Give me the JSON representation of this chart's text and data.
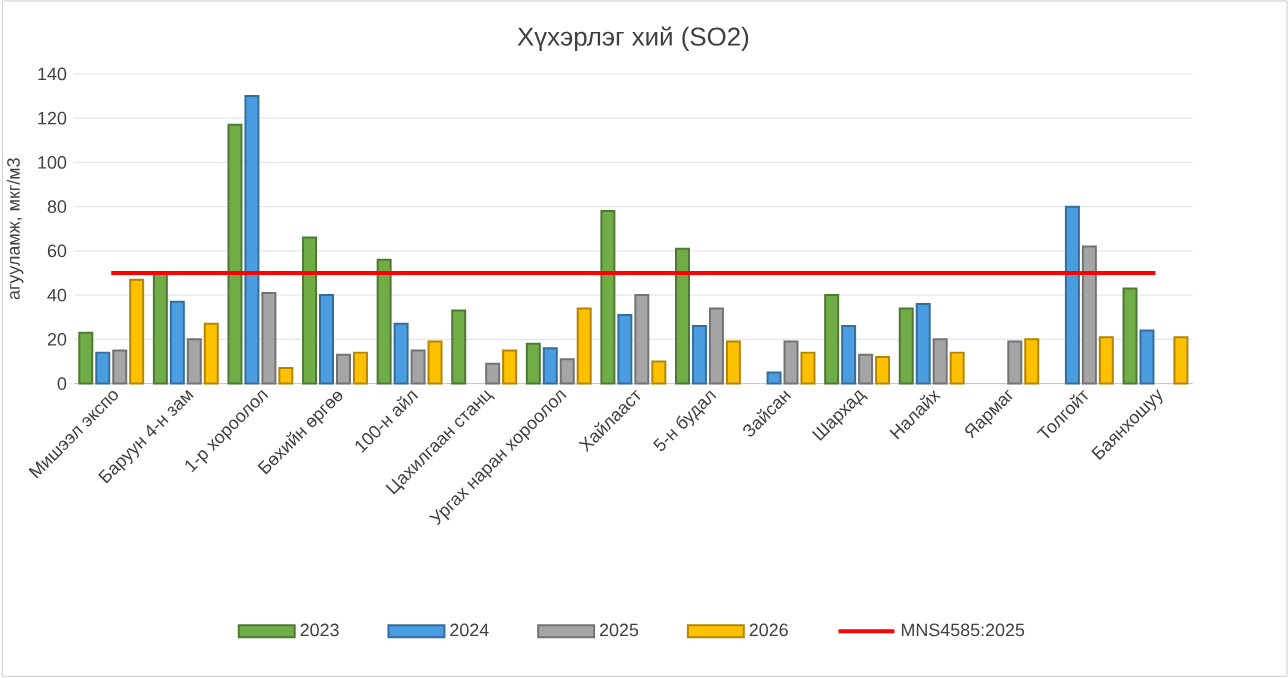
{
  "chart_data": {
    "type": "bar",
    "title": "Хүхэрлэг хий (SO2)",
    "ylabel": "агууламж, мкг/м3",
    "categories": [
      "Мишээл экспо",
      "Баруун 4-н зам",
      "1-р хороолол",
      "Бөхийн өргөө",
      "100-н айл",
      "Цахилгаан станц",
      "Ургах наран хороолол",
      "Хайлааст",
      "5-н будал",
      "Зайсан",
      "Шархад",
      "Налайх",
      "Яармаг",
      "Толгойт",
      "Баянхошуу"
    ],
    "series": [
      {
        "name": "2023",
        "color": "#70ad47",
        "values": [
          23,
          50,
          117,
          66,
          56,
          33,
          18,
          78,
          61,
          null,
          40,
          34,
          null,
          null,
          43
        ]
      },
      {
        "name": "2024",
        "color": "#4a9de0",
        "values": [
          14,
          37,
          130,
          40,
          27,
          null,
          16,
          31,
          26,
          5,
          26,
          36,
          null,
          80,
          24
        ]
      },
      {
        "name": "2025",
        "color": "#a5a5a5",
        "values": [
          15,
          20,
          41,
          13,
          15,
          9,
          11,
          40,
          34,
          19,
          13,
          20,
          19,
          62,
          null
        ]
      },
      {
        "name": "2026",
        "color": "#ffc000",
        "values": [
          47,
          27,
          7,
          14,
          19,
          15,
          34,
          10,
          19,
          14,
          12,
          14,
          20,
          21,
          21
        ]
      },
      {
        "name": "MNS4585:2025",
        "type": "line",
        "color": "#ff0000",
        "values": [
          50,
          50,
          50,
          50,
          50,
          50,
          50,
          50,
          50,
          50,
          50,
          50,
          50,
          50,
          50
        ]
      }
    ],
    "ylim": [
      0,
      140
    ],
    "yticks": [
      0,
      20,
      40,
      60,
      80,
      100,
      120,
      140
    ],
    "grid": "y",
    "legend": "bottom"
  }
}
